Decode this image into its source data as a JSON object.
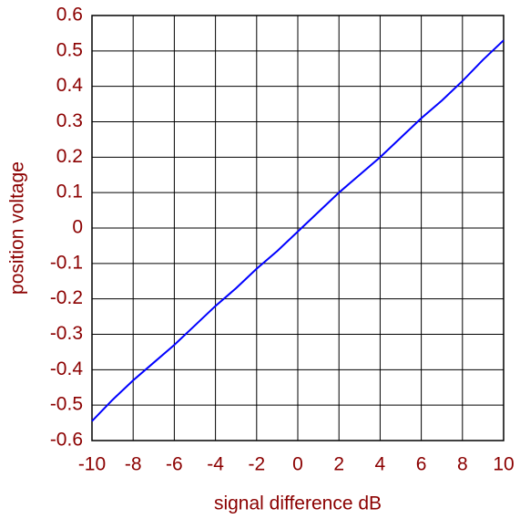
{
  "chart_data": {
    "type": "line",
    "x_label": "signal difference dB",
    "y_label": "position voltage",
    "x": [
      -10,
      -9,
      -8,
      -7,
      -6,
      -5,
      -4,
      -3,
      -2,
      -1,
      0,
      1,
      2,
      3,
      4,
      5,
      6,
      7,
      8,
      9,
      10
    ],
    "series": [
      {
        "name": "position voltage",
        "color": "#0000ff",
        "values": [
          -0.545,
          -0.485,
          -0.43,
          -0.38,
          -0.33,
          -0.275,
          -0.22,
          -0.17,
          -0.115,
          -0.065,
          -0.01,
          0.045,
          0.1,
          0.15,
          0.2,
          0.255,
          0.31,
          0.36,
          0.415,
          0.475,
          0.53
        ]
      }
    ],
    "xlim": [
      -10,
      10
    ],
    "xticks": [
      -10,
      -8,
      -6,
      -4,
      -2,
      0,
      2,
      4,
      6,
      8,
      10
    ],
    "ylim": [
      -0.6,
      0.6
    ],
    "yticks": [
      -0.6,
      -0.5,
      -0.4,
      -0.3,
      -0.2,
      -0.1,
      0,
      0.1,
      0.2,
      0.3,
      0.4,
      0.5,
      0.6
    ],
    "grid": true
  }
}
